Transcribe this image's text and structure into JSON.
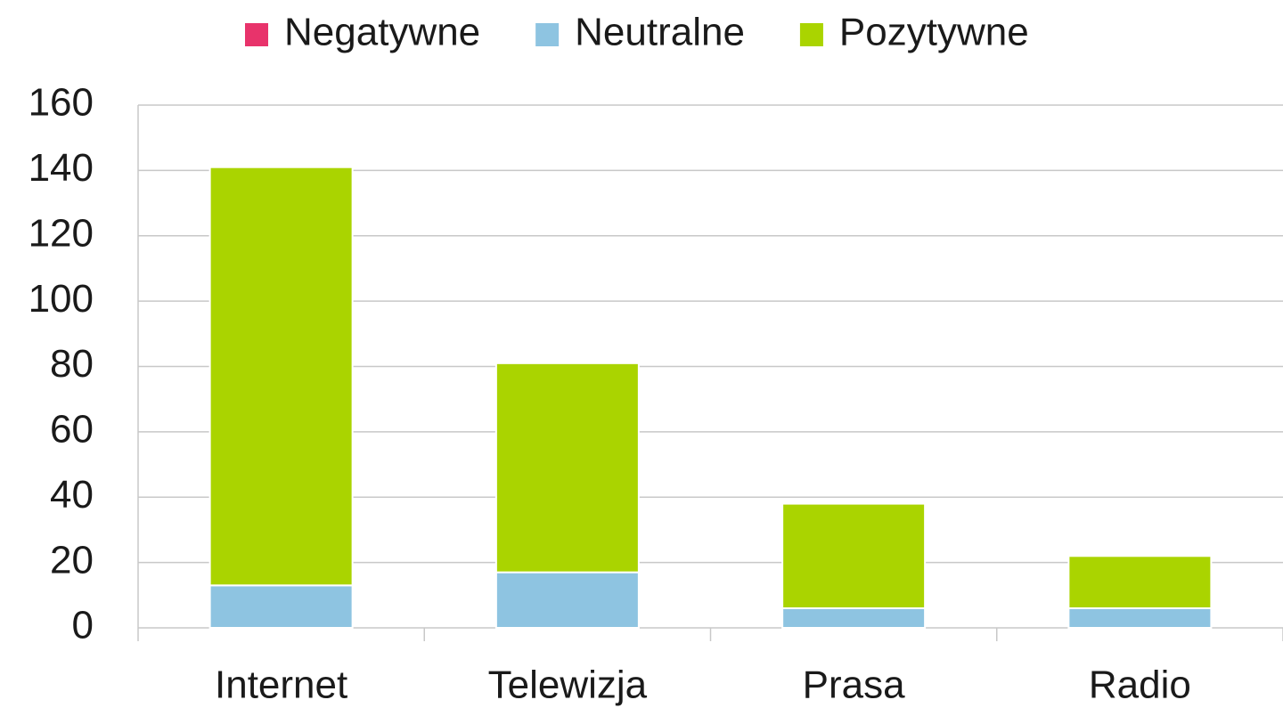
{
  "chart_data": {
    "type": "stacked_bar",
    "categories": [
      "Internet",
      "Telewizja",
      "Prasa",
      "Radio"
    ],
    "series": [
      {
        "name": "Negatywne",
        "color": "#e8336b",
        "values": [
          0,
          0,
          0,
          0
        ]
      },
      {
        "name": "Neutralne",
        "color": "#8ec4e1",
        "values": [
          13,
          17,
          6,
          6
        ]
      },
      {
        "name": "Pozytywne",
        "color": "#aad400",
        "values": [
          128,
          64,
          32,
          16
        ]
      }
    ],
    "ylim": [
      0,
      160
    ],
    "yticks": [
      0,
      20,
      40,
      60,
      80,
      100,
      120,
      140,
      160
    ],
    "grid": true,
    "legend": "top"
  }
}
